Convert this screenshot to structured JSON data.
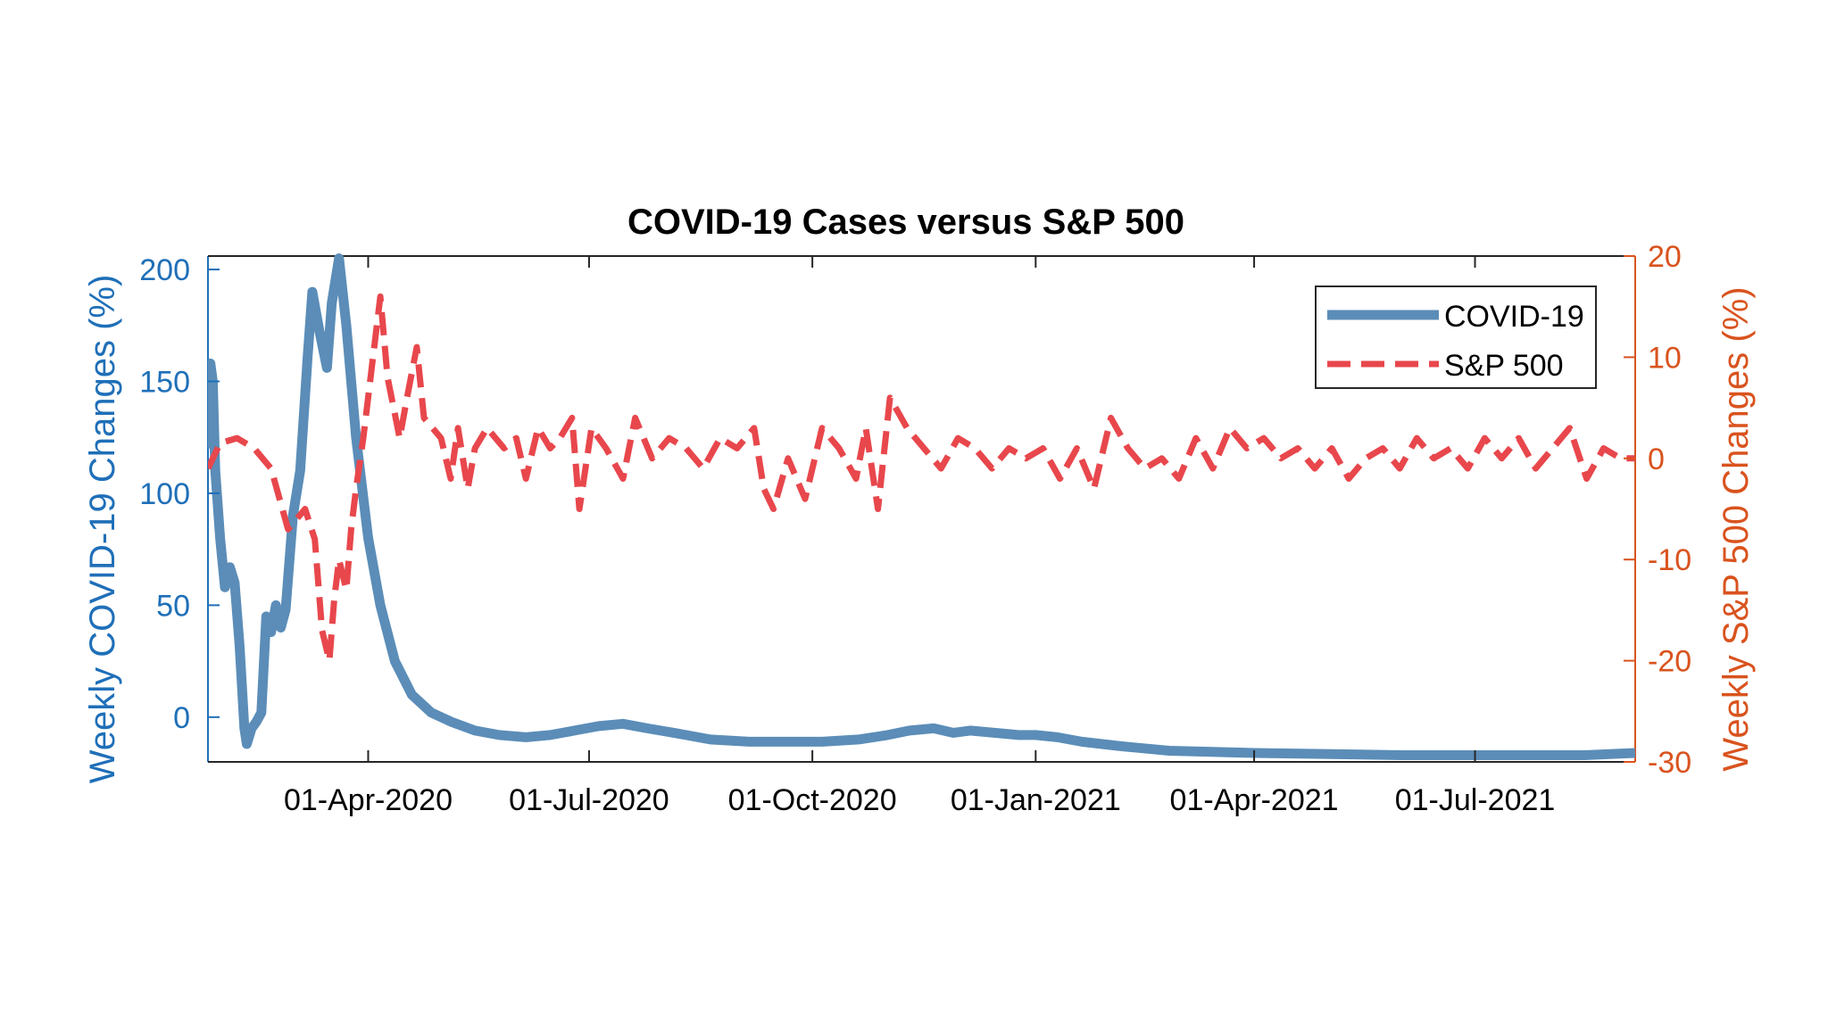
{
  "chart_data": {
    "type": "line",
    "title": "COVID-19 Cases versus S&P 500",
    "xlabel": "",
    "ylabel_left": "Weekly COVID-19 Changes (%)",
    "ylabel_right": "Weekly S&P 500 Changes (%)",
    "x_ticks": [
      {
        "date": "2020-04-01",
        "label": "01-Apr-2020"
      },
      {
        "date": "2020-07-01",
        "label": "01-Jul-2020"
      },
      {
        "date": "2020-10-01",
        "label": "01-Oct-2020"
      },
      {
        "date": "2021-01-01",
        "label": "01-Jan-2021"
      },
      {
        "date": "2021-04-01",
        "label": "01-Apr-2021"
      },
      {
        "date": "2021-07-01",
        "label": "01-Jul-2021"
      }
    ],
    "xlim": [
      "2020-01-26",
      "2021-09-05"
    ],
    "ylim_left": [
      -20,
      206
    ],
    "ylim_right": [
      -30,
      20
    ],
    "yticks_left": [
      0,
      50,
      100,
      150,
      200
    ],
    "yticks_right": [
      -30,
      -20,
      -10,
      0,
      10,
      20
    ],
    "grid": false,
    "legend_position": "top-right",
    "colors": {
      "left_axis": "#1f6fb8",
      "right_axis": "#d9531e",
      "covid_line": "#5b8db8",
      "sp500_line": "#e8474c",
      "axes": "#262626"
    },
    "series": [
      {
        "name": "COVID-19",
        "axis": "left",
        "style": "solid",
        "points": [
          [
            "2020-01-26",
            120
          ],
          [
            "2020-01-27",
            158
          ],
          [
            "2020-01-28",
            150
          ],
          [
            "2020-01-29",
            110
          ],
          [
            "2020-01-31",
            80
          ],
          [
            "2020-02-02",
            58
          ],
          [
            "2020-02-04",
            67
          ],
          [
            "2020-02-06",
            60
          ],
          [
            "2020-02-08",
            32
          ],
          [
            "2020-02-10",
            -5
          ],
          [
            "2020-02-11",
            -12
          ],
          [
            "2020-02-13",
            -5
          ],
          [
            "2020-02-15",
            -2
          ],
          [
            "2020-02-17",
            2
          ],
          [
            "2020-02-19",
            45
          ],
          [
            "2020-02-21",
            38
          ],
          [
            "2020-02-23",
            50
          ],
          [
            "2020-02-25",
            40
          ],
          [
            "2020-02-27",
            48
          ],
          [
            "2020-03-01",
            90
          ],
          [
            "2020-03-04",
            110
          ],
          [
            "2020-03-07",
            160
          ],
          [
            "2020-03-09",
            190
          ],
          [
            "2020-03-12",
            172
          ],
          [
            "2020-03-15",
            156
          ],
          [
            "2020-03-17",
            185
          ],
          [
            "2020-03-20",
            205
          ],
          [
            "2020-03-23",
            175
          ],
          [
            "2020-03-27",
            125
          ],
          [
            "2020-04-01",
            80
          ],
          [
            "2020-04-06",
            50
          ],
          [
            "2020-04-12",
            25
          ],
          [
            "2020-04-19",
            10
          ],
          [
            "2020-04-27",
            2
          ],
          [
            "2020-05-05",
            -2
          ],
          [
            "2020-05-15",
            -6
          ],
          [
            "2020-05-25",
            -8
          ],
          [
            "2020-06-05",
            -9
          ],
          [
            "2020-06-15",
            -8
          ],
          [
            "2020-06-25",
            -6
          ],
          [
            "2020-07-05",
            -4
          ],
          [
            "2020-07-15",
            -3
          ],
          [
            "2020-07-25",
            -5
          ],
          [
            "2020-08-05",
            -7
          ],
          [
            "2020-08-20",
            -10
          ],
          [
            "2020-09-05",
            -11
          ],
          [
            "2020-09-20",
            -11
          ],
          [
            "2020-10-05",
            -11
          ],
          [
            "2020-10-20",
            -10
          ],
          [
            "2020-11-01",
            -8
          ],
          [
            "2020-11-10",
            -6
          ],
          [
            "2020-11-20",
            -5
          ],
          [
            "2020-11-28",
            -7
          ],
          [
            "2020-12-05",
            -6
          ],
          [
            "2020-12-15",
            -7
          ],
          [
            "2020-12-25",
            -8
          ],
          [
            "2021-01-01",
            -8
          ],
          [
            "2021-01-10",
            -9
          ],
          [
            "2021-01-20",
            -11
          ],
          [
            "2021-02-05",
            -13
          ],
          [
            "2021-02-25",
            -15
          ],
          [
            "2021-04-01",
            -16
          ],
          [
            "2021-06-01",
            -17
          ],
          [
            "2021-08-15",
            -17
          ],
          [
            "2021-09-05",
            -16
          ]
        ]
      },
      {
        "name": "S&P 500",
        "axis": "right",
        "style": "dashed",
        "points": [
          [
            "2020-01-26",
            -1
          ],
          [
            "2020-01-31",
            1.5
          ],
          [
            "2020-02-07",
            2
          ],
          [
            "2020-02-14",
            1
          ],
          [
            "2020-02-21",
            -1
          ],
          [
            "2020-02-28",
            -7
          ],
          [
            "2020-03-06",
            -5
          ],
          [
            "2020-03-10",
            -8
          ],
          [
            "2020-03-13",
            -17
          ],
          [
            "2020-03-16",
            -20
          ],
          [
            "2020-03-18",
            -14
          ],
          [
            "2020-03-20",
            -10
          ],
          [
            "2020-03-23",
            -13
          ],
          [
            "2020-03-25",
            -7
          ],
          [
            "2020-03-27",
            -3
          ],
          [
            "2020-03-30",
            2
          ],
          [
            "2020-04-03",
            10
          ],
          [
            "2020-04-06",
            16
          ],
          [
            "2020-04-09",
            8
          ],
          [
            "2020-04-14",
            2
          ],
          [
            "2020-04-17",
            6
          ],
          [
            "2020-04-21",
            11
          ],
          [
            "2020-04-24",
            4
          ],
          [
            "2020-05-01",
            2
          ],
          [
            "2020-05-05",
            -2
          ],
          [
            "2020-05-08",
            3
          ],
          [
            "2020-05-12",
            -3
          ],
          [
            "2020-05-15",
            1
          ],
          [
            "2020-05-20",
            3
          ],
          [
            "2020-05-27",
            1
          ],
          [
            "2020-06-01",
            2
          ],
          [
            "2020-06-05",
            -2
          ],
          [
            "2020-06-10",
            3
          ],
          [
            "2020-06-15",
            1
          ],
          [
            "2020-06-19",
            2
          ],
          [
            "2020-06-24",
            4
          ],
          [
            "2020-06-27",
            -5
          ],
          [
            "2020-07-02",
            3
          ],
          [
            "2020-07-08",
            1
          ],
          [
            "2020-07-15",
            -2
          ],
          [
            "2020-07-20",
            4
          ],
          [
            "2020-07-27",
            0
          ],
          [
            "2020-08-03",
            2
          ],
          [
            "2020-08-10",
            1
          ],
          [
            "2020-08-17",
            -1
          ],
          [
            "2020-08-24",
            2
          ],
          [
            "2020-08-31",
            1
          ],
          [
            "2020-09-07",
            3
          ],
          [
            "2020-09-11",
            -3
          ],
          [
            "2020-09-15",
            -5
          ],
          [
            "2020-09-21",
            0
          ],
          [
            "2020-09-28",
            -4
          ],
          [
            "2020-10-05",
            3
          ],
          [
            "2020-10-12",
            1
          ],
          [
            "2020-10-19",
            -2
          ],
          [
            "2020-10-23",
            3
          ],
          [
            "2020-10-28",
            -5
          ],
          [
            "2020-11-02",
            6
          ],
          [
            "2020-11-09",
            3
          ],
          [
            "2020-11-16",
            1
          ],
          [
            "2020-11-23",
            -1
          ],
          [
            "2020-11-30",
            2
          ],
          [
            "2020-12-07",
            1
          ],
          [
            "2020-12-14",
            -1
          ],
          [
            "2020-12-21",
            1
          ],
          [
            "2020-12-28",
            0
          ],
          [
            "2021-01-04",
            1
          ],
          [
            "2021-01-11",
            -2
          ],
          [
            "2021-01-18",
            1
          ],
          [
            "2021-01-25",
            -3
          ],
          [
            "2021-02-01",
            4
          ],
          [
            "2021-02-08",
            1
          ],
          [
            "2021-02-15",
            -1
          ],
          [
            "2021-02-22",
            0
          ],
          [
            "2021-03-01",
            -2
          ],
          [
            "2021-03-08",
            2
          ],
          [
            "2021-03-15",
            -1
          ],
          [
            "2021-03-22",
            3
          ],
          [
            "2021-03-29",
            1
          ],
          [
            "2021-04-05",
            2
          ],
          [
            "2021-04-12",
            0
          ],
          [
            "2021-04-19",
            1
          ],
          [
            "2021-04-26",
            -1
          ],
          [
            "2021-05-03",
            1
          ],
          [
            "2021-05-10",
            -2
          ],
          [
            "2021-05-17",
            0
          ],
          [
            "2021-05-24",
            1
          ],
          [
            "2021-05-31",
            -1
          ],
          [
            "2021-06-07",
            2
          ],
          [
            "2021-06-14",
            0
          ],
          [
            "2021-06-21",
            1
          ],
          [
            "2021-06-28",
            -1
          ],
          [
            "2021-07-05",
            2
          ],
          [
            "2021-07-12",
            0
          ],
          [
            "2021-07-19",
            2
          ],
          [
            "2021-07-26",
            -1
          ],
          [
            "2021-08-02",
            1
          ],
          [
            "2021-08-09",
            3
          ],
          [
            "2021-08-16",
            -2
          ],
          [
            "2021-08-23",
            1
          ],
          [
            "2021-08-30",
            0
          ],
          [
            "2021-09-05",
            0
          ]
        ]
      }
    ]
  }
}
